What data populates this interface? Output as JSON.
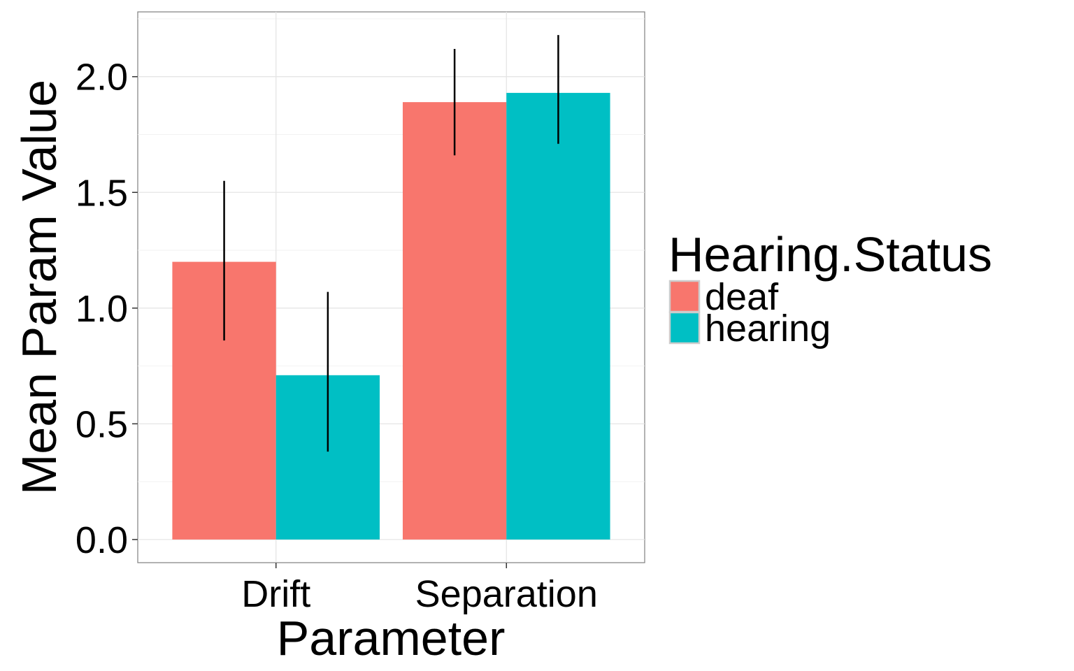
{
  "chart_data": {
    "type": "bar",
    "categories": [
      "Drift",
      "Separation"
    ],
    "series": [
      {
        "name": "deaf",
        "color": "#F8766D",
        "values": [
          1.2,
          1.89
        ],
        "err_low": [
          0.86,
          1.66
        ],
        "err_high": [
          1.55,
          2.12
        ]
      },
      {
        "name": "hearing",
        "color": "#00BFC4",
        "values": [
          0.71,
          1.93
        ],
        "err_low": [
          0.38,
          1.71
        ],
        "err_high": [
          1.07,
          2.18
        ]
      }
    ],
    "xlabel": "Parameter",
    "ylabel": "Mean Param Value",
    "ylim": [
      -0.1,
      2.28
    ],
    "yticks": [
      0.0,
      0.5,
      1.0,
      1.5,
      2.0
    ],
    "ytick_labels": [
      "0.0",
      "0.5",
      "1.0",
      "1.5",
      "2.0"
    ],
    "grid": true,
    "legend": {
      "title": "Hearing.Status",
      "position": "right"
    }
  }
}
